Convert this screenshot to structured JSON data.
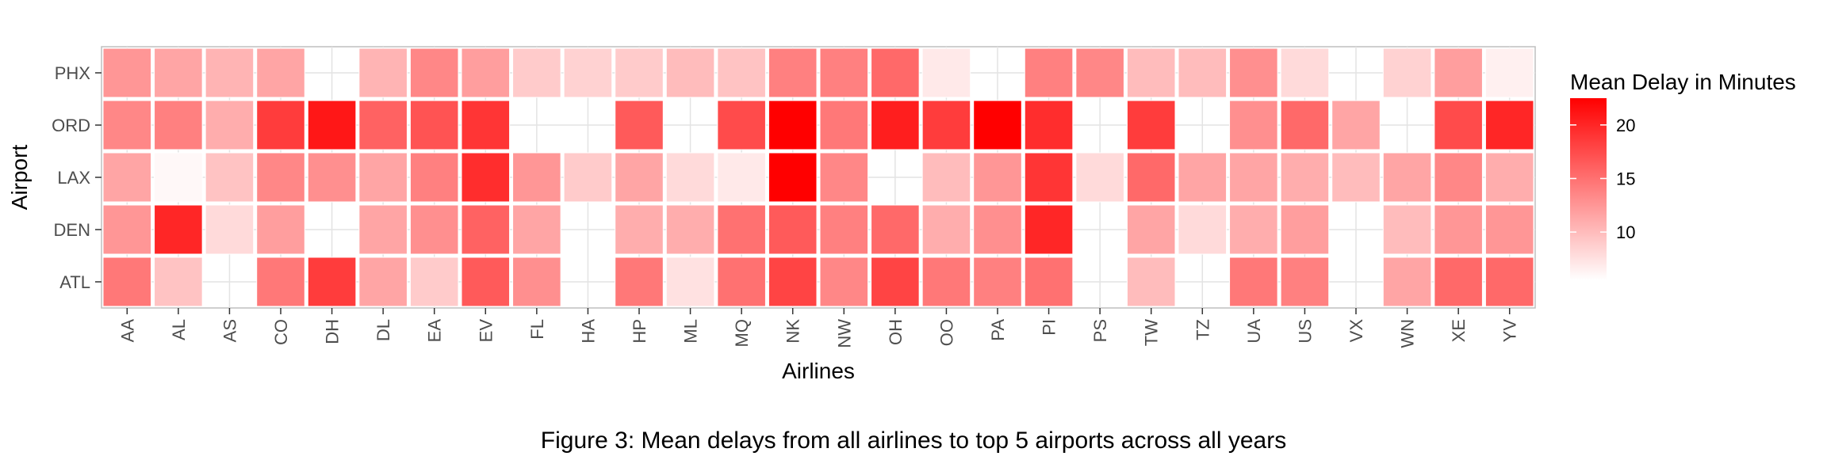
{
  "chart_data": {
    "type": "heatmap",
    "xlabel": "Airlines",
    "ylabel": "Airport",
    "x_categories": [
      "AA",
      "AL",
      "AS",
      "CO",
      "DH",
      "DL",
      "EA",
      "EV",
      "FL",
      "HA",
      "HP",
      "ML",
      "MQ",
      "NK",
      "NW",
      "OH",
      "OO",
      "PA",
      "PI",
      "PS",
      "TW",
      "TZ",
      "UA",
      "US",
      "VX",
      "WN",
      "XE",
      "YV"
    ],
    "y_categories": [
      "PHX",
      "ORD",
      "LAX",
      "DEN",
      "ATL"
    ],
    "values": [
      [
        12.5,
        11.5,
        10.5,
        11.5,
        null,
        10.5,
        13.5,
        12.0,
        9.0,
        8.5,
        9.0,
        10.0,
        9.5,
        14.0,
        14.0,
        15.5,
        7.0,
        null,
        14.0,
        13.5,
        10.0,
        10.0,
        13.0,
        8.0,
        null,
        8.5,
        12.0,
        6.5
      ],
      [
        13.5,
        14.0,
        11.0,
        18.5,
        21.0,
        16.0,
        17.0,
        19.0,
        null,
        null,
        16.5,
        null,
        17.5,
        23.0,
        14.5,
        20.5,
        18.5,
        23.0,
        19.5,
        null,
        18.5,
        null,
        13.0,
        15.5,
        11.5,
        null,
        17.5,
        20.0
      ],
      [
        11.5,
        6.0,
        9.5,
        13.5,
        13.0,
        11.5,
        14.0,
        19.5,
        12.5,
        9.0,
        11.5,
        8.0,
        7.0,
        22.5,
        13.5,
        null,
        10.0,
        12.5,
        19.0,
        8.0,
        15.5,
        11.5,
        11.5,
        11.0,
        10.0,
        11.5,
        13.5,
        11.0
      ],
      [
        12.5,
        20.0,
        8.0,
        12.0,
        null,
        11.5,
        13.0,
        16.0,
        11.5,
        null,
        11.0,
        11.0,
        15.0,
        16.5,
        14.0,
        15.5,
        11.0,
        13.0,
        20.0,
        null,
        11.5,
        8.0,
        11.0,
        12.0,
        null,
        10.0,
        12.5,
        12.5
      ],
      [
        14.5,
        9.5,
        null,
        14.5,
        18.5,
        11.5,
        9.0,
        16.5,
        13.0,
        null,
        14.5,
        7.5,
        15.0,
        18.0,
        13.5,
        18.0,
        14.5,
        14.0,
        15.0,
        null,
        10.0,
        null,
        14.5,
        14.0,
        null,
        11.5,
        15.5,
        15.5
      ]
    ],
    "legend": {
      "title": "Mean Delay in Minutes",
      "ticks": [
        10,
        15,
        20
      ],
      "range": [
        5.5,
        22.5
      ],
      "low_color": "#ffffff",
      "high_color": "#ff0000"
    },
    "grid": true,
    "legend_position": "right"
  },
  "caption": "Figure 3: Mean delays from all airlines to top 5 airports across all years"
}
